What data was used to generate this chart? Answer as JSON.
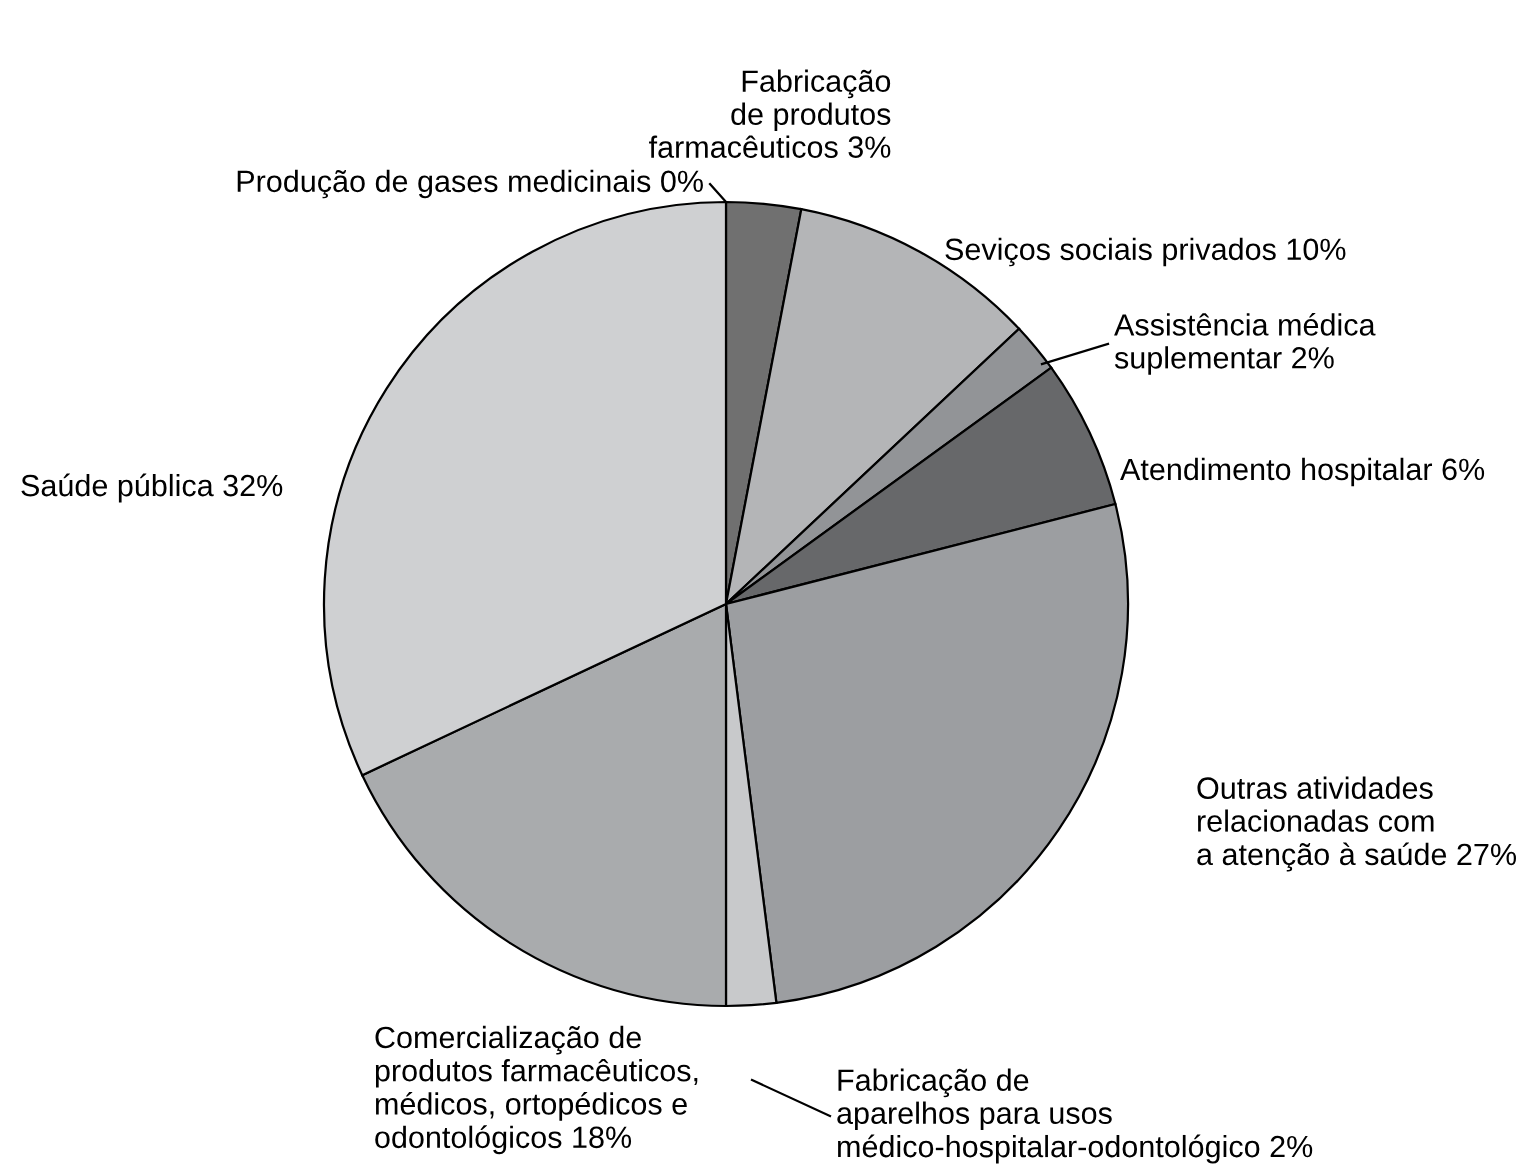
{
  "chart_data": {
    "type": "pie",
    "categories": [
      "Produção de gases medicinais",
      "Fabricação\nde produtos\nfarmacêuticos",
      "Seviços sociais privados",
      "Assistência médica\nsuplementar",
      "Atendimento hospitalar",
      "Outras atividades\nrelacionadas com\na atenção à saúde",
      "Fabricação de\naparelhos para usos\nmédico-hospitalar-odontológico",
      "Comercialização de\nprodutos farmacêuticos,\nmédicos, ortopédicos e\nodontológicos",
      "Saúde pública"
    ],
    "values": [
      0,
      3,
      10,
      2,
      6,
      27,
      2,
      18,
      32
    ],
    "value_labels": [
      "0%",
      "3%",
      "10%",
      "2%",
      "6%",
      "27%",
      "2%",
      "18%",
      "32%"
    ],
    "colors": [
      "#8a8a8a",
      "#707070",
      "#b4b5b7",
      "#929497",
      "#67686a",
      "#9c9ea1",
      "#c8c9cb",
      "#a9abad",
      "#cfd0d2"
    ]
  }
}
